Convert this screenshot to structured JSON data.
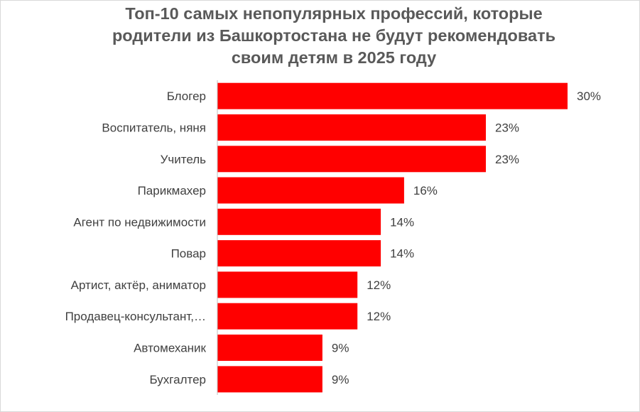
{
  "chart_data": {
    "type": "bar",
    "orientation": "horizontal",
    "title": "Топ-10 самых непопулярных профессий, которые родители из Башкортостана не будут рекомендовать своим детям в 2025 году",
    "categories": [
      "Блогер",
      "Воспитатель, няня",
      "Учитель",
      "Парикмахер",
      "Агент по недвижимости",
      "Повар",
      "Артист, актёр, аниматор",
      "Продавец-консультант,…",
      "Автомеханик",
      "Бухгалтер"
    ],
    "values": [
      30,
      23,
      23,
      16,
      14,
      14,
      12,
      12,
      9,
      9
    ],
    "value_labels": [
      "30%",
      "23%",
      "23%",
      "16%",
      "14%",
      "14%",
      "12%",
      "12%",
      "9%",
      "9%"
    ],
    "xlim": [
      0,
      30
    ],
    "bar_color": "#ff0000",
    "grid": false,
    "legend": "none"
  }
}
